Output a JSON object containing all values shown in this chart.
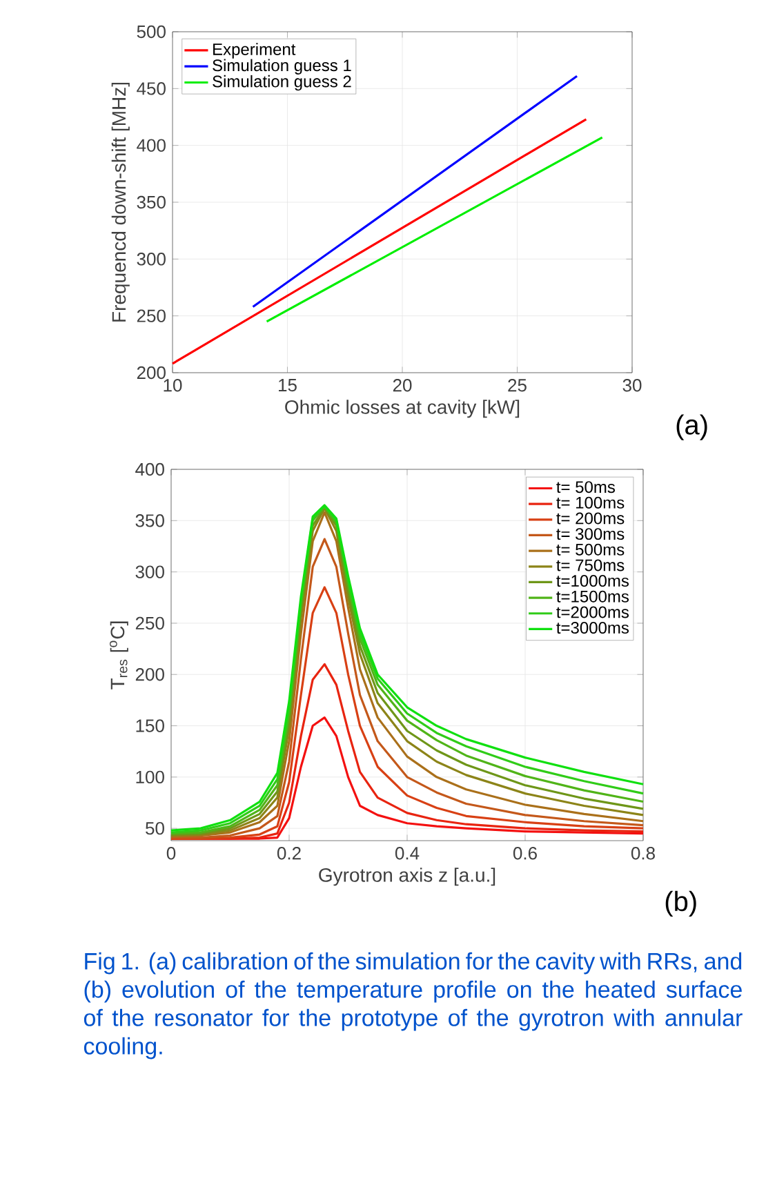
{
  "chart_data": [
    {
      "type": "line",
      "xlabel": "Ohmic losses at cavity [kW]",
      "ylabel": "Frequencd down-shift [MHz]",
      "xlim": [
        10,
        30
      ],
      "ylim": [
        200,
        500
      ],
      "xticks": [
        10,
        15,
        20,
        25,
        30
      ],
      "yticks": [
        200,
        250,
        300,
        350,
        400,
        450,
        500
      ],
      "grid": true,
      "legend": "top left",
      "annotations": [
        "(a)"
      ],
      "series": [
        {
          "name": "Experiment",
          "color": "#ff0000",
          "x": [
            10,
            28
          ],
          "values": [
            208,
            423
          ]
        },
        {
          "name": "Simulation guess 1",
          "color": "#0000ff",
          "x": [
            13.5,
            27.6
          ],
          "values": [
            258,
            461
          ]
        },
        {
          "name": "Simulation guess 2",
          "color": "#00ee00",
          "x": [
            14.1,
            28.7
          ],
          "values": [
            245,
            407
          ]
        }
      ]
    },
    {
      "type": "line",
      "xlabel": "Gyrotron axis z [a.u.]",
      "ylabel": "T$_{res}$ [$^{o}$C]",
      "xlim": [
        0,
        0.8
      ],
      "ylim": [
        38,
        400
      ],
      "xticks": [
        0,
        0.2,
        0.4,
        0.6,
        0.8
      ],
      "yticks": [
        50,
        100,
        150,
        200,
        250,
        300,
        350,
        400
      ],
      "grid": true,
      "legend": "top right",
      "annotations": [
        "(b)",
        "Fig 1. (a) calibration of the simulation for the cavity with RRs, and (b) evolution of the temperature profile on the heated surface of the resonator for the prototype of the gyrotron with annular cooling."
      ],
      "x": [
        0,
        0.05,
        0.1,
        0.15,
        0.18,
        0.2,
        0.22,
        0.24,
        0.26,
        0.28,
        0.3,
        0.32,
        0.35,
        0.4,
        0.45,
        0.5,
        0.6,
        0.7,
        0.8
      ],
      "series": [
        {
          "name": "t=  50ms",
          "color": "#f41010",
          "values": [
            40,
            40,
            40,
            40,
            41,
            60,
            110,
            150,
            158,
            140,
            100,
            72,
            63,
            55,
            52,
            50,
            47,
            46,
            45
          ]
        },
        {
          "name": "t= 100ms",
          "color": "#e82410",
          "values": [
            40,
            40,
            40,
            41,
            45,
            75,
            140,
            195,
            210,
            190,
            145,
            105,
            80,
            65,
            58,
            54,
            50,
            48,
            47
          ]
        },
        {
          "name": "t= 200ms",
          "color": "#d84014",
          "values": [
            40,
            40,
            41,
            44,
            52,
            95,
            180,
            260,
            285,
            260,
            200,
            150,
            110,
            82,
            70,
            62,
            56,
            52,
            50
          ]
        },
        {
          "name": "t= 300ms",
          "color": "#c4581a",
          "values": [
            41,
            41,
            43,
            50,
            62,
            115,
            215,
            305,
            332,
            305,
            240,
            180,
            135,
            100,
            85,
            74,
            63,
            57,
            53
          ]
        },
        {
          "name": "t= 500ms",
          "color": "#aa701a",
          "values": [
            42,
            43,
            46,
            56,
            72,
            135,
            240,
            330,
            358,
            330,
            265,
            205,
            158,
            120,
            100,
            88,
            73,
            64,
            57
          ]
        },
        {
          "name": "t= 750ms",
          "color": "#8c8418",
          "values": [
            43,
            44,
            48,
            60,
            80,
            148,
            255,
            340,
            362,
            340,
            275,
            220,
            172,
            135,
            115,
            102,
            84,
            72,
            63
          ]
        },
        {
          "name": "t=1000ms",
          "color": "#6e9618",
          "values": [
            44,
            45,
            50,
            64,
            86,
            155,
            262,
            345,
            363,
            345,
            282,
            228,
            182,
            145,
            126,
            112,
            92,
            79,
            69
          ]
        },
        {
          "name": "t=1500ms",
          "color": "#50b418",
          "values": [
            45,
            46,
            52,
            68,
            92,
            162,
            268,
            350,
            364,
            348,
            288,
            235,
            190,
            155,
            136,
            121,
            101,
            87,
            76
          ]
        },
        {
          "name": "t=2000ms",
          "color": "#30cc18",
          "values": [
            46,
            48,
            55,
            72,
            98,
            168,
            272,
            352,
            364,
            350,
            292,
            240,
            196,
            162,
            143,
            130,
            110,
            96,
            84
          ]
        },
        {
          "name": "t=3000ms",
          "color": "#10e010",
          "values": [
            48,
            50,
            58,
            76,
            104,
            174,
            276,
            354,
            365,
            352,
            296,
            245,
            200,
            168,
            150,
            137,
            119,
            105,
            93
          ]
        }
      ]
    }
  ]
}
